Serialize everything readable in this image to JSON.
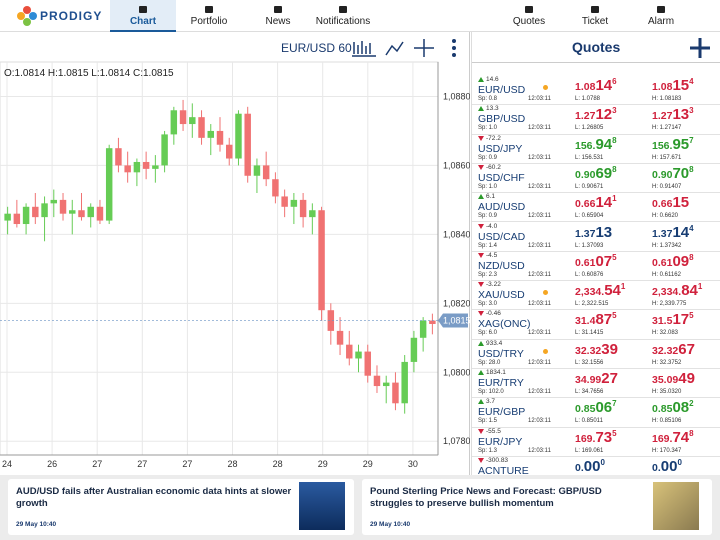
{
  "nav": {
    "brand": "PRODIGY",
    "tabs": [
      "Chart",
      "Portfolio",
      "News",
      "Notifications"
    ],
    "right_tabs": [
      "Quotes",
      "Ticket",
      "Alarm"
    ],
    "active": 0
  },
  "chart": {
    "type": "candlestick",
    "symbol": "EUR/USD 60",
    "ohlc_text": "O:1.0814 H:1.0815 L:1.0814 C:1.0815",
    "ylim": [
      1.0776,
      1.089
    ],
    "yticks": [
      {
        "value": 1.078,
        "label": "1,0780"
      },
      {
        "value": 1.08,
        "label": "1,0800"
      },
      {
        "value": 1.082,
        "label": "1,0820"
      },
      {
        "value": 1.084,
        "label": "1,0840"
      },
      {
        "value": 1.086,
        "label": "1,0860"
      },
      {
        "value": 1.088,
        "label": "1,0880"
      }
    ],
    "xticks": [
      "24",
      "26",
      "27",
      "27",
      "27",
      "28",
      "28",
      "29",
      "29",
      "30"
    ],
    "last": {
      "value": 1.0815,
      "label": "1,0815"
    },
    "up_color": "#66cc55",
    "down_color": "#f07272",
    "grid": true,
    "open": [
      1.0844,
      1.0846,
      1.0843,
      1.0848,
      1.0845,
      1.0849,
      1.085,
      1.0846,
      1.0847,
      1.0845,
      1.0848,
      1.0844,
      1.0865,
      1.086,
      1.0858,
      1.0861,
      1.0859,
      1.086,
      1.0869,
      1.0876,
      1.0872,
      1.0874,
      1.0868,
      1.087,
      1.0866,
      1.0862,
      1.0875,
      1.0857,
      1.086,
      1.0856,
      1.0851,
      1.0848,
      1.085,
      1.0845,
      1.0847,
      1.0818,
      1.0812,
      1.0808,
      1.0804,
      1.0806,
      1.0799,
      1.0796,
      1.0797,
      1.0791,
      1.0803,
      1.081,
      1.0815
    ],
    "high": [
      1.0848,
      1.085,
      1.0849,
      1.0852,
      1.0851,
      1.0853,
      1.0852,
      1.085,
      1.0852,
      1.0849,
      1.085,
      1.0866,
      1.0868,
      1.0864,
      1.0862,
      1.0864,
      1.0863,
      1.087,
      1.0877,
      1.0879,
      1.0878,
      1.0876,
      1.0872,
      1.0874,
      1.0868,
      1.0876,
      1.0877,
      1.0862,
      1.0864,
      1.0858,
      1.0853,
      1.0852,
      1.0852,
      1.0849,
      1.0848,
      1.082,
      1.0816,
      1.0812,
      1.0808,
      1.0808,
      1.0802,
      1.0799,
      1.08,
      1.0805,
      1.0812,
      1.0816,
      1.0817
    ],
    "low": [
      1.084,
      1.0842,
      1.084,
      1.0843,
      1.0838,
      1.0845,
      1.0844,
      1.084,
      1.0844,
      1.0842,
      1.0843,
      1.0843,
      1.0858,
      1.0855,
      1.0854,
      1.0856,
      1.0855,
      1.0858,
      1.0866,
      1.087,
      1.0868,
      1.0866,
      1.0863,
      1.0864,
      1.086,
      1.086,
      1.0855,
      1.0852,
      1.0854,
      1.0849,
      1.0845,
      1.0843,
      1.0842,
      1.084,
      1.0815,
      1.0808,
      1.0805,
      1.0802,
      1.08,
      1.0797,
      1.0794,
      1.0791,
      1.0789,
      1.0788,
      1.08,
      1.0806,
      1.0811
    ],
    "close": [
      1.0846,
      1.0843,
      1.0848,
      1.0845,
      1.0849,
      1.085,
      1.0846,
      1.0847,
      1.0845,
      1.0848,
      1.0844,
      1.0865,
      1.086,
      1.0858,
      1.0861,
      1.0859,
      1.086,
      1.0869,
      1.0876,
      1.0872,
      1.0874,
      1.0868,
      1.087,
      1.0866,
      1.0862,
      1.0875,
      1.0857,
      1.086,
      1.0856,
      1.0851,
      1.0848,
      1.085,
      1.0845,
      1.0847,
      1.0818,
      1.0812,
      1.0808,
      1.0804,
      1.0806,
      1.0799,
      1.0796,
      1.0797,
      1.0791,
      1.0803,
      1.081,
      1.0815,
      1.0814
    ]
  },
  "quotes": {
    "title": "Quotes",
    "colors": {
      "red": "#d0213c",
      "green": "#2b9a2b",
      "blue": "#173d73"
    },
    "rows": [
      {
        "change": "14.6",
        "dir": "up",
        "symbol": "EUR/USD",
        "spread": "Sp: 0.8",
        "time": "12:03:11",
        "alert": true,
        "color": "red",
        "sell": {
          "pre": "1.08",
          "big": "14",
          "sup": "6"
        },
        "buy": {
          "pre": "1.08",
          "big": "15",
          "sup": "4"
        },
        "low": "L: 1.0788",
        "high": "H: 1.08183"
      },
      {
        "change": "13.3",
        "dir": "up",
        "symbol": "GBP/USD",
        "spread": "Sp: 1.0",
        "time": "12:03:11",
        "color": "red",
        "sell": {
          "pre": "1.27",
          "big": "12",
          "sup": "3"
        },
        "buy": {
          "pre": "1.27",
          "big": "13",
          "sup": "3"
        },
        "low": "L: 1.26805",
        "high": "H: 1.27147"
      },
      {
        "change": "-72.2",
        "dir": "down",
        "symbol": "USD/JPY",
        "spread": "Sp: 0.9",
        "time": "12:03:11",
        "color": "green",
        "sell": {
          "pre": "156.",
          "big": "94",
          "sup": "8"
        },
        "buy": {
          "pre": "156.",
          "big": "95",
          "sup": "7"
        },
        "low": "L: 156.531",
        "high": "H: 157.671"
      },
      {
        "change": "-60.2",
        "dir": "down",
        "symbol": "USD/CHF",
        "spread": "Sp: 1.0",
        "time": "12:03:11",
        "color": "green",
        "sell": {
          "pre": "0.90",
          "big": "69",
          "sup": "8"
        },
        "buy": {
          "pre": "0.90",
          "big": "70",
          "sup": "8"
        },
        "low": "L: 0.90671",
        "high": "H: 0.91407"
      },
      {
        "change": "6.1",
        "dir": "up",
        "symbol": "AUD/USD",
        "spread": "Sp: 0.9",
        "time": "12:03:11",
        "color": "red",
        "sell": {
          "pre": "0.66",
          "big": "14",
          "sup": "1"
        },
        "buy": {
          "pre": "0.66",
          "big": "15"
        },
        "low": "L: 0.65904",
        "high": "H: 0.6620"
      },
      {
        "change": "-4.0",
        "dir": "down",
        "symbol": "USD/CAD",
        "spread": "Sp: 1.4",
        "time": "12:03:11",
        "color": "blue",
        "sell": {
          "pre": "1.37",
          "big": "13"
        },
        "buy": {
          "pre": "1.37",
          "big": "14",
          "sup": "4"
        },
        "low": "L: 1.37093",
        "high": "H: 1.37342"
      },
      {
        "change": "-4.5",
        "dir": "down",
        "symbol": "NZD/USD",
        "spread": "Sp: 2.3",
        "time": "12:03:11",
        "color": "red",
        "sell": {
          "pre": "0.61",
          "big": "07",
          "sup": "5"
        },
        "buy": {
          "pre": "0.61",
          "big": "09",
          "sup": "8"
        },
        "low": "L: 0.60876",
        "high": "H: 0.61162"
      },
      {
        "change": "-3.22",
        "dir": "down",
        "symbol": "XAU/USD",
        "spread": "Sp: 3.0",
        "time": "12:03:11",
        "alert": true,
        "color": "red",
        "sell": {
          "pre": "2,334.",
          "big": "54",
          "sup": "1"
        },
        "buy": {
          "pre": "2,334.",
          "big": "84",
          "sup": "1"
        },
        "low": "L: 2,322.515",
        "high": "H: 2,339.775"
      },
      {
        "change": "-0.46",
        "dir": "down",
        "symbol": "XAG(ONC)",
        "spread": "Sp: 6.0",
        "time": "12:03:11",
        "color": "red",
        "sell": {
          "pre": "31.4",
          "big": "87",
          "sup": "5"
        },
        "buy": {
          "pre": "31.5",
          "big": "17",
          "sup": "5"
        },
        "low": "L: 31.1415",
        "high": "H: 32.083"
      },
      {
        "change": "933.4",
        "dir": "up",
        "symbol": "USD/TRY",
        "spread": "Sp: 28.0",
        "time": "12:03:11",
        "alert": true,
        "color": "red",
        "sell": {
          "pre": "32.32",
          "big": "39"
        },
        "buy": {
          "pre": "32.32",
          "big": "67"
        },
        "low": "L: 32.1556",
        "high": "H: 32.3752"
      },
      {
        "change": "1834.1",
        "dir": "up",
        "symbol": "EUR/TRY",
        "spread": "Sp: 102.0",
        "time": "12:03:11",
        "color": "red",
        "sell": {
          "pre": "34.99",
          "big": "27"
        },
        "buy": {
          "pre": "35.09",
          "big": "49"
        },
        "low": "L: 34.7656",
        "high": "H: 35.0320"
      },
      {
        "change": "3.7",
        "dir": "up",
        "symbol": "EUR/GBP",
        "spread": "Sp: 1.5",
        "time": "12:03:11",
        "color": "green",
        "sell": {
          "pre": "0.85",
          "big": "06",
          "sup": "7"
        },
        "buy": {
          "pre": "0.85",
          "big": "08",
          "sup": "2"
        },
        "low": "L: 0.85011",
        "high": "H: 0.85106"
      },
      {
        "change": "-55.5",
        "dir": "down",
        "symbol": "EUR/JPY",
        "spread": "Sp: 1.3",
        "time": "12:03:11",
        "color": "red",
        "sell": {
          "pre": "169.",
          "big": "73",
          "sup": "5"
        },
        "buy": {
          "pre": "169.",
          "big": "74",
          "sup": "8"
        },
        "low": "L: 169.061",
        "high": "H: 170.347"
      },
      {
        "change": "-300.83",
        "dir": "down",
        "symbol": "ACNTURE",
        "color": "blue",
        "sell": {
          "pre": "0.",
          "big": "00",
          "sup": "0"
        },
        "buy": {
          "pre": "0.",
          "big": "00",
          "sup": "0"
        }
      }
    ]
  },
  "news": [
    {
      "headline": "AUD/USD fails after Australian economic data hints at slower growth",
      "date": "29 May 10:40"
    },
    {
      "headline": "Pound Sterling Price News and Forecast: GBP/USD struggles to preserve bullish momentum",
      "date": "29 May 10:40"
    }
  ]
}
